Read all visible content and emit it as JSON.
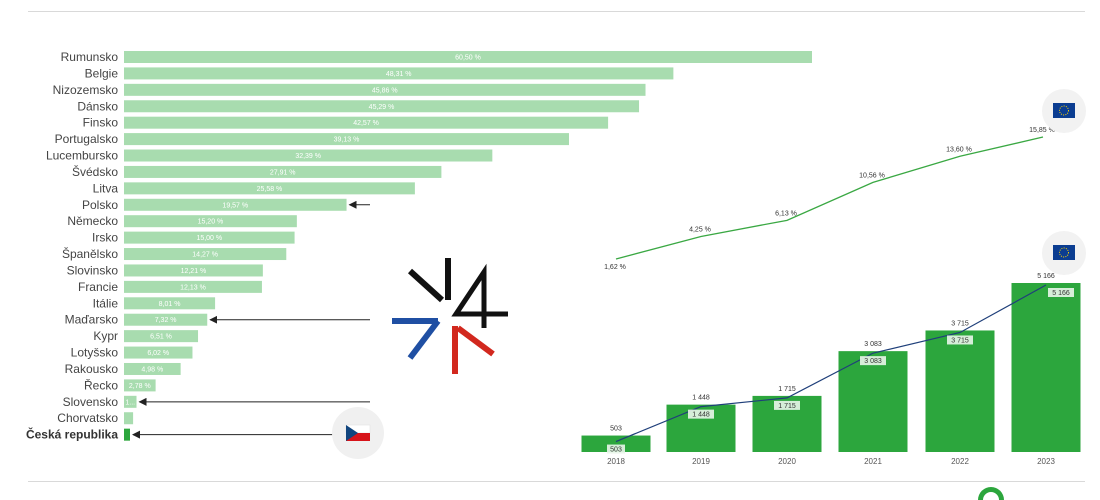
{
  "colors": {
    "bar_light": "#a8dcaf",
    "bar_dark": "#2ca63d",
    "eu_line": "#3aa843",
    "count_line": "#1f3f7a",
    "arrow": "#222222",
    "logo_black": "#111111",
    "logo_blue": "#1f4fa3",
    "logo_red": "#d2281e"
  },
  "icons": [
    "eu-flag-icon",
    "eu-flag-icon",
    "czech-flag-icon",
    "v4-logo-icon"
  ],
  "chart_data": [
    {
      "type": "bar",
      "orientation": "horizontal",
      "categories": [
        "Rumunsko",
        "Belgie",
        "Nizozemsko",
        "Dánsko",
        "Finsko",
        "Portugalsko",
        "Lucembursko",
        "Švédsko",
        "Litva",
        "Polsko",
        "Německo",
        "Irsko",
        "Španělsko",
        "Slovinsko",
        "Francie",
        "Itálie",
        "Maďarsko",
        "Kypr",
        "Lotyšsko",
        "Rakousko",
        "Řecko",
        "Slovensko",
        "Chorvatsko",
        "Česká republika"
      ],
      "values": [
        60.5,
        48.31,
        45.86,
        45.29,
        42.57,
        39.13,
        32.39,
        27.91,
        25.58,
        19.57,
        15.2,
        15.0,
        14.27,
        12.21,
        12.13,
        8.01,
        7.32,
        6.51,
        6.02,
        4.98,
        2.78,
        1.1,
        0.8,
        0.5
      ],
      "value_labels": [
        "60,50 %",
        "48,31 %",
        "45,86 %",
        "45,29 %",
        "42,57 %",
        "39,13 %",
        "32,39 %",
        "27,91 %",
        "25,58 %",
        "19,57 %",
        "15,20 %",
        "15,00 %",
        "14,27 %",
        "12,21 %",
        "12,13 %",
        "8,01 %",
        "7,32 %",
        "6,51 %",
        "6,02 %",
        "4,98 %",
        "2,78 %",
        "1...",
        "",
        ""
      ],
      "highlighted": [
        "Česká republika"
      ],
      "arrows_to": [
        "Polsko",
        "Maďarsko",
        "Slovensko",
        "Česká republika"
      ],
      "grid": false
    },
    {
      "type": "line",
      "x": [
        "2018",
        "2019",
        "2020",
        "2021",
        "2022",
        "2023"
      ],
      "values": [
        1.62,
        4.25,
        6.13,
        10.56,
        13.6,
        15.85
      ],
      "value_labels": [
        "1,62 %",
        "4,25 %",
        "6,13 %",
        "10,56 %",
        "13,60 %",
        "15,85 %"
      ]
    },
    {
      "type": "bar",
      "categories": [
        "2018",
        "2019",
        "2020",
        "2021",
        "2022",
        "2023"
      ],
      "values": [
        503,
        1448,
        1715,
        3083,
        3715,
        5166
      ],
      "value_labels": [
        "503",
        "1 448",
        "1 715",
        "3 083",
        "3 715",
        "5 166"
      ],
      "line_overlay": true
    }
  ]
}
